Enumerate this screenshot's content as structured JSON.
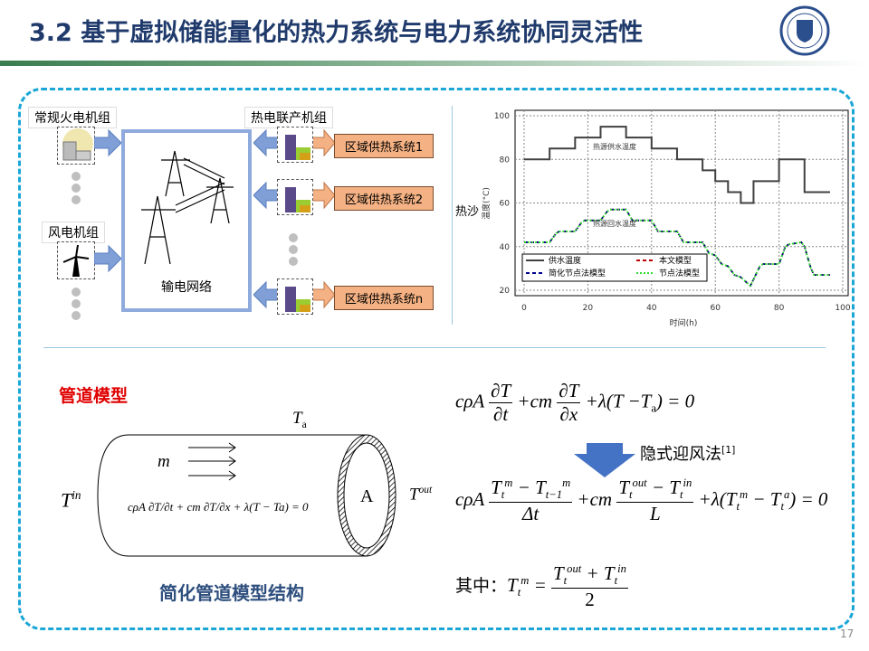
{
  "header": {
    "title": "3.2 基于虚拟储能量化的热力系统与电力系统协同灵活性",
    "accent": "#1f3a6b"
  },
  "diagram": {
    "thermal_label": "常规火电机组",
    "wind_label": "风电机组",
    "chp_label": "热电联产机组",
    "grid_label": "输电网络",
    "heat_systems": [
      "区域供热系统1",
      "区域供热系统2",
      "区域供热系统n"
    ]
  },
  "chart_data": {
    "type": "line",
    "xlabel": "时间(h)",
    "ylabel": "温度(°C)",
    "xlim": [
      0,
      100
    ],
    "ylim": [
      20,
      100
    ],
    "xticks": [
      0,
      20,
      40,
      60,
      80,
      100
    ],
    "yticks": [
      20,
      40,
      60,
      80,
      100
    ],
    "grid": true,
    "legend": "bottom-left",
    "annotations": [
      "热源供水温度",
      "热源回水温度"
    ],
    "cut_text": "热沙",
    "series": [
      {
        "name": "供水温度",
        "style": "solid",
        "color": "#404040",
        "x": [
          0,
          8,
          8,
          16,
          16,
          24,
          24,
          32,
          32,
          40,
          40,
          48,
          48,
          56,
          56,
          60,
          60,
          64,
          64,
          68,
          68,
          72,
          72,
          80,
          80,
          88,
          88,
          96
        ],
        "y": [
          80,
          80,
          85,
          85,
          90,
          90,
          95,
          95,
          90,
          90,
          85,
          85,
          80,
          80,
          75,
          75,
          70,
          70,
          65,
          65,
          60,
          60,
          70,
          70,
          80,
          80,
          65,
          65
        ]
      },
      {
        "name": "本文模型",
        "style": "dashed",
        "color": "#c00000",
        "x": [
          0,
          8,
          10,
          11,
          16,
          18,
          19,
          24,
          26,
          27,
          32,
          34,
          40,
          42,
          48,
          50,
          56,
          58,
          60,
          62,
          64,
          66,
          68,
          71,
          74,
          75,
          80,
          82,
          83,
          87,
          88,
          90,
          91,
          96
        ],
        "y": [
          42,
          42,
          46,
          47,
          47,
          51,
          52,
          52,
          56,
          57,
          57,
          52,
          52,
          47,
          47,
          42,
          42,
          37,
          36,
          32,
          31,
          27,
          26,
          22,
          31,
          32,
          32,
          40,
          41,
          42,
          40,
          30,
          27,
          27
        ]
      },
      {
        "name": "简化节点法模型",
        "style": "dashed",
        "color": "#00008b",
        "x": [
          0,
          8,
          10,
          11,
          16,
          18,
          19,
          24,
          26,
          27,
          32,
          34,
          40,
          42,
          48,
          50,
          56,
          58,
          60,
          62,
          64,
          66,
          68,
          71,
          74,
          75,
          80,
          82,
          83,
          87,
          88,
          90,
          91,
          96
        ],
        "y": [
          42,
          42,
          46,
          47,
          47,
          51,
          52,
          52,
          56,
          57,
          57,
          52,
          52,
          47,
          47,
          42,
          42,
          37,
          36,
          32,
          31,
          27,
          26,
          22,
          31,
          32,
          32,
          40,
          41,
          42,
          40,
          30,
          27,
          27
        ]
      },
      {
        "name": "节点法模型",
        "style": "dotted",
        "color": "#33dd33",
        "x": [
          0,
          8,
          10,
          11,
          16,
          18,
          19,
          24,
          26,
          27,
          32,
          34,
          40,
          42,
          48,
          50,
          56,
          58,
          60,
          62,
          64,
          66,
          68,
          71,
          74,
          75,
          80,
          82,
          83,
          87,
          88,
          90,
          91,
          96
        ],
        "y": [
          42,
          42,
          46,
          47,
          47,
          51,
          52,
          52,
          56,
          57,
          57,
          52,
          52,
          47,
          47,
          42,
          42,
          37,
          36,
          32,
          31,
          27,
          26,
          22,
          31,
          32,
          32,
          40,
          41,
          42,
          40,
          30,
          27,
          27
        ]
      }
    ]
  },
  "pipe": {
    "title": "管道模型",
    "caption": "简化管道模型结构",
    "Ta": "T",
    "Ta_sub": "a",
    "Tin": "T",
    "Tin_sup": "in",
    "Tout": "T",
    "Tout_sup": "out",
    "m": "m",
    "area": "A",
    "inner_eq": "cρA ∂T/∂t + cm ∂T/∂x + λ(T − Ta) = 0"
  },
  "equations": {
    "pde_left": "cρA",
    "pde_mid": "+cm",
    "pde_right": "+λ(T −T",
    "pde_a": "a",
    ") = 0": "",
    "pde_end": ") = 0",
    "dT": "∂T",
    "dt": "∂t",
    "dx": "∂x",
    "method": "隐式迎风法",
    "method_ref": "[1]",
    "disc_num1": "T",
    "disc_den1": "Δt",
    "disc_den2": "L",
    "disc_tail": "+λ(T",
    "disc_end": ") = 0",
    "where": "其中：",
    "half_den": "2"
  },
  "page": {
    "number": "17"
  }
}
